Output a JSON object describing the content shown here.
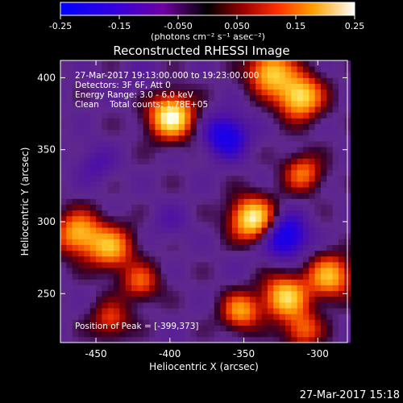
{
  "chart_data": {
    "type": "heatmap",
    "title": "Reconstructed RHESSI Image",
    "colorbar": {
      "ticks": [
        "-0.25",
        "-0.15",
        "-0.050",
        "0.050",
        "0.15",
        "0.25"
      ],
      "min": -0.25,
      "max": 0.25,
      "unit_label": "(photons cm⁻² s⁻¹ asec⁻²)"
    },
    "annotations": [
      "27-Mar-2017 19:13:00.000 to 19:23:00.000",
      "Detectors: 3F 6F, Att 0",
      "Energy Range: 3.0 - 6.0 keV",
      "Clean    Total counts: 1.78E+05"
    ],
    "peak_label": "Position of Peak = [-399,373]",
    "xlabel": "Heliocentric X (arcsec)",
    "ylabel": "Heliocentric Y (arcsec)",
    "xticks": [
      "-450",
      "-400",
      "-350",
      "-300"
    ],
    "xtick_values": [
      -450,
      -400,
      -350,
      -300
    ],
    "yticks": [
      "250",
      "300",
      "350",
      "400"
    ],
    "ytick_values": [
      250,
      300,
      350,
      400
    ],
    "xlim": [
      -474,
      -280
    ],
    "ylim": [
      216,
      412
    ],
    "bright_sources": [
      {
        "x": -399,
        "y": 373,
        "value": 0.25
      },
      {
        "x": -344,
        "y": 302,
        "value": 0.24
      },
      {
        "x": -312,
        "y": 387,
        "value": 0.22
      },
      {
        "x": -332,
        "y": 404,
        "value": 0.19
      },
      {
        "x": -440,
        "y": 282,
        "value": 0.16
      },
      {
        "x": -462,
        "y": 292,
        "value": 0.17
      },
      {
        "x": -322,
        "y": 248,
        "value": 0.2
      },
      {
        "x": -352,
        "y": 238,
        "value": 0.15
      },
      {
        "x": -292,
        "y": 262,
        "value": 0.17
      },
      {
        "x": -310,
        "y": 334,
        "value": 0.12
      },
      {
        "x": -420,
        "y": 258,
        "value": 0.1
      },
      {
        "x": -440,
        "y": 232,
        "value": 0.09
      },
      {
        "x": -310,
        "y": 225,
        "value": 0.11
      }
    ],
    "dark_sources": [
      {
        "x": -322,
        "y": 290,
        "value": -0.22
      },
      {
        "x": -362,
        "y": 360,
        "value": -0.2
      },
      {
        "x": -450,
        "y": 340,
        "value": -0.1
      },
      {
        "x": -400,
        "y": 300,
        "value": -0.08
      },
      {
        "x": -420,
        "y": 400,
        "value": -0.06
      },
      {
        "x": -350,
        "y": 275,
        "value": -0.05
      }
    ]
  },
  "footer": {
    "timestamp": "27-Mar-2017 15:18"
  }
}
